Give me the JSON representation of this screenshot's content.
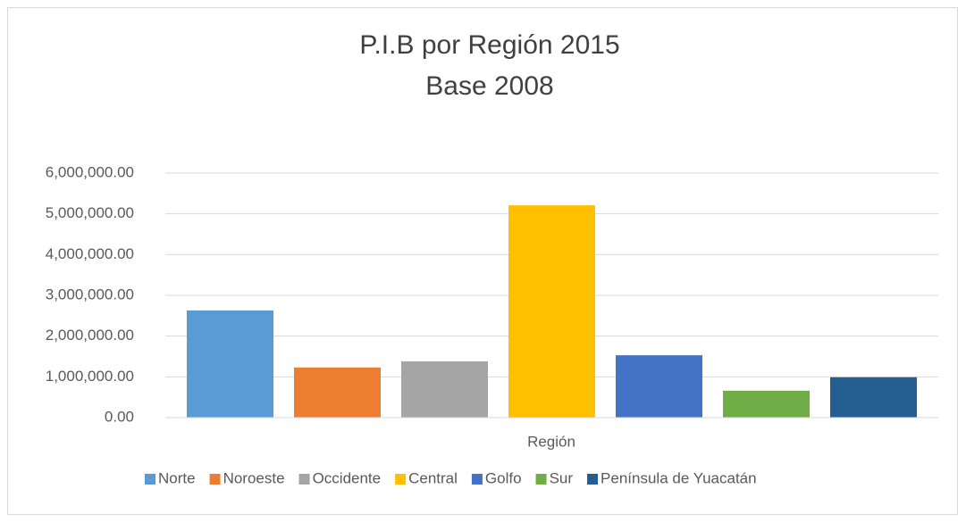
{
  "chart_data": {
    "type": "bar",
    "title": "P.I.B por Región 2015",
    "subtitle": "Base 2008",
    "x_label": "Región",
    "categories": [
      null
    ],
    "series": [
      {
        "name": "Norte",
        "color": "#5b9bd5",
        "values": [
          2630000
        ]
      },
      {
        "name": "Noroeste",
        "color": "#ed7d31",
        "values": [
          1230000
        ]
      },
      {
        "name": "Occidente",
        "color": "#a5a5a5",
        "values": [
          1380000
        ]
      },
      {
        "name": "Central",
        "color": "#ffc000",
        "values": [
          5210000
        ]
      },
      {
        "name": "Golfo",
        "color": "#4472c4",
        "values": [
          1530000
        ]
      },
      {
        "name": "Sur",
        "color": "#70ad47",
        "values": [
          660000
        ]
      },
      {
        "name": "Península de Yuacatán",
        "color": "#255e91",
        "values": [
          990000
        ]
      }
    ],
    "ylim": [
      0,
      6000000
    ],
    "yticks": [
      {
        "value": 0,
        "label": "0.00"
      },
      {
        "value": 1000000,
        "label": "1,000,000.00"
      },
      {
        "value": 2000000,
        "label": "2,000,000.00"
      },
      {
        "value": 3000000,
        "label": "3,000,000.00"
      },
      {
        "value": 4000000,
        "label": "4,000,000.00"
      },
      {
        "value": 5000000,
        "label": "5,000,000.00"
      },
      {
        "value": 6000000,
        "label": "6,000,000.00"
      }
    ],
    "grid": true,
    "legend": "bottom"
  }
}
